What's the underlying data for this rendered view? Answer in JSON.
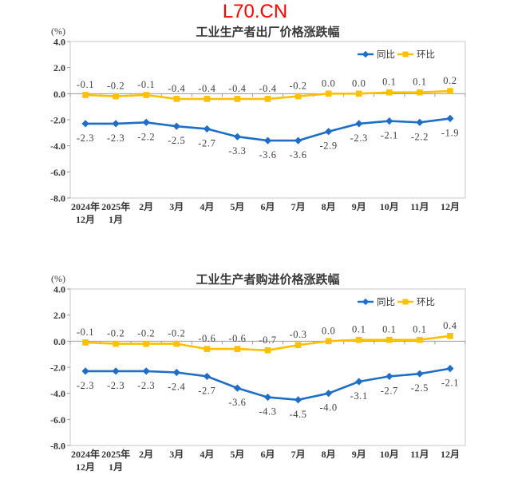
{
  "header": {
    "title": "L70.CN",
    "title_color": "#FF0000"
  },
  "colors": {
    "yoy_line": "#1E6EC8",
    "mom_line": "#FFC000",
    "plot_border": "#c8c8c8",
    "axis": "#999999",
    "text": "#333333",
    "data_label": "#404040"
  },
  "chart_data": [
    {
      "type": "line",
      "title": "工业生产者出厂价格涨跌幅",
      "unit_label": "(%)",
      "ylim": [
        -8.0,
        4.0
      ],
      "ytick_labels": [
        "4.0",
        "2.0",
        "0.0",
        "-2.0",
        "-4.0",
        "-6.0",
        "-8.0"
      ],
      "grid": false,
      "legend_position": "top-right-inside",
      "categories": [
        [
          "2024年",
          "12月"
        ],
        [
          "2025年",
          "1月"
        ],
        [
          "2月"
        ],
        [
          "3月"
        ],
        [
          "4月"
        ],
        [
          "5月"
        ],
        [
          "6月"
        ],
        [
          "7月"
        ],
        [
          "8月"
        ],
        [
          "9月"
        ],
        [
          "10月"
        ],
        [
          "11月"
        ],
        [
          "12月"
        ]
      ],
      "series": [
        {
          "name": "同比",
          "marker": "diamond",
          "color": "#1E6EC8",
          "values": [
            -2.3,
            -2.3,
            -2.2,
            -2.5,
            -2.7,
            -3.3,
            -3.6,
            -3.6,
            -2.9,
            -2.3,
            -2.1,
            -2.2,
            -1.9
          ]
        },
        {
          "name": "环比",
          "marker": "square",
          "color": "#FFC000",
          "values": [
            -0.1,
            -0.2,
            -0.1,
            -0.4,
            -0.4,
            -0.4,
            -0.4,
            -0.2,
            0.0,
            0.0,
            0.1,
            0.1,
            0.2
          ]
        }
      ]
    },
    {
      "type": "line",
      "title": "工业生产者购进价格涨跌幅",
      "unit_label": "(%)",
      "ylim": [
        -8.0,
        4.0
      ],
      "ytick_labels": [
        "4.0",
        "2.0",
        "0.0",
        "-2.0",
        "-4.0",
        "-6.0",
        "-8.0"
      ],
      "grid": false,
      "legend_position": "top-right-inside",
      "categories": [
        [
          "2024年",
          "12月"
        ],
        [
          "2025年",
          "1月"
        ],
        [
          "2月"
        ],
        [
          "3月"
        ],
        [
          "4月"
        ],
        [
          "5月"
        ],
        [
          "6月"
        ],
        [
          "7月"
        ],
        [
          "8月"
        ],
        [
          "9月"
        ],
        [
          "10月"
        ],
        [
          "11月"
        ],
        [
          "12月"
        ]
      ],
      "series": [
        {
          "name": "同比",
          "marker": "diamond",
          "color": "#1E6EC8",
          "values": [
            -2.3,
            -2.3,
            -2.3,
            -2.4,
            -2.7,
            -3.6,
            -4.3,
            -4.5,
            -4.0,
            -3.1,
            -2.7,
            -2.5,
            -2.1
          ]
        },
        {
          "name": "环比",
          "marker": "square",
          "color": "#FFC000",
          "values": [
            -0.1,
            -0.2,
            -0.2,
            -0.2,
            -0.6,
            -0.6,
            -0.7,
            -0.3,
            0.0,
            0.1,
            0.1,
            0.1,
            0.4
          ]
        }
      ]
    }
  ]
}
